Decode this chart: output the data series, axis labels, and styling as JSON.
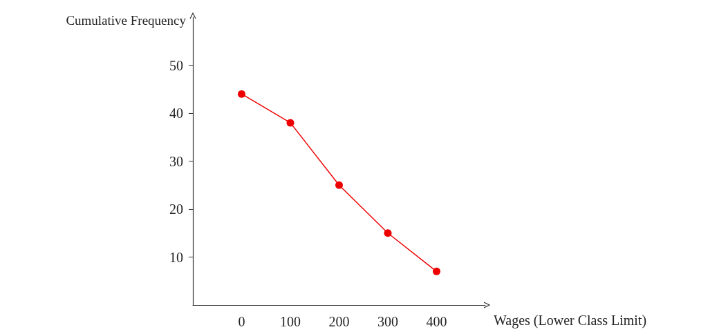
{
  "chart_data": {
    "type": "line",
    "xlabel": "Wages (Lower Class Limit)",
    "ylabel": "Cumulative Frequency",
    "x": [
      0,
      100,
      200,
      300,
      400
    ],
    "series": [
      {
        "color": "#ee0000",
        "values": [
          44,
          38,
          25,
          15,
          7
        ]
      }
    ],
    "xlim": [
      -100,
      500
    ],
    "xticks": [
      0,
      100,
      200,
      300,
      400
    ],
    "ylim": [
      0,
      60
    ],
    "yticks": [
      10,
      20,
      30,
      40,
      50
    ],
    "grid": false,
    "marker": "circle",
    "line_style": "solid"
  }
}
